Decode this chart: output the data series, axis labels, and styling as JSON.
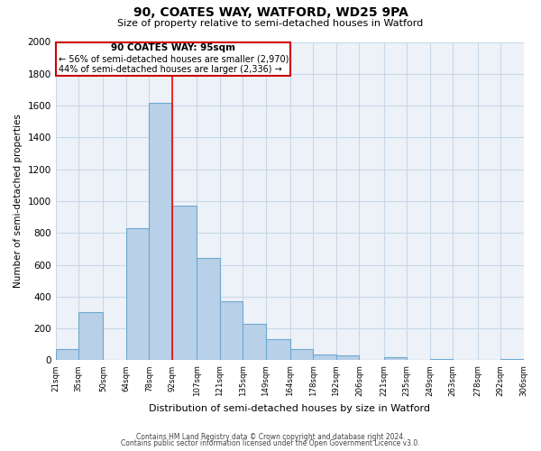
{
  "title": "90, COATES WAY, WATFORD, WD25 9PA",
  "subtitle": "Size of property relative to semi-detached houses in Watford",
  "xlabel": "Distribution of semi-detached houses by size in Watford",
  "ylabel": "Number of semi-detached properties",
  "bin_edges": [
    21,
    35,
    50,
    64,
    78,
    92,
    107,
    121,
    135,
    149,
    164,
    178,
    192,
    206,
    221,
    235,
    249,
    263,
    278,
    292,
    306
  ],
  "bar_heights": [
    70,
    300,
    0,
    830,
    1620,
    970,
    645,
    370,
    230,
    130,
    70,
    35,
    30,
    0,
    20,
    0,
    10,
    0,
    0,
    10
  ],
  "tick_labels": [
    "21sqm",
    "35sqm",
    "50sqm",
    "64sqm",
    "78sqm",
    "92sqm",
    "107sqm",
    "121sqm",
    "135sqm",
    "149sqm",
    "164sqm",
    "178sqm",
    "192sqm",
    "206sqm",
    "221sqm",
    "235sqm",
    "249sqm",
    "263sqm",
    "278sqm",
    "292sqm",
    "306sqm"
  ],
  "bar_color": "#b8d0e8",
  "bar_edge_color": "#6ea8d0",
  "property_line_x": 92,
  "annotation_text_line1": "90 COATES WAY: 95sqm",
  "annotation_text_line2": "← 56% of semi-detached houses are smaller (2,970)",
  "annotation_text_line3": "44% of semi-detached houses are larger (2,336) →",
  "ylim": [
    0,
    2000
  ],
  "yticks": [
    0,
    200,
    400,
    600,
    800,
    1000,
    1200,
    1400,
    1600,
    1800,
    2000
  ],
  "grid_color": "#c8d8e8",
  "background_color": "#edf2f8",
  "box_edge_color": "#cc0000",
  "footer_line1": "Contains HM Land Registry data © Crown copyright and database right 2024.",
  "footer_line2": "Contains public sector information licensed under the Open Government Licence v3.0."
}
